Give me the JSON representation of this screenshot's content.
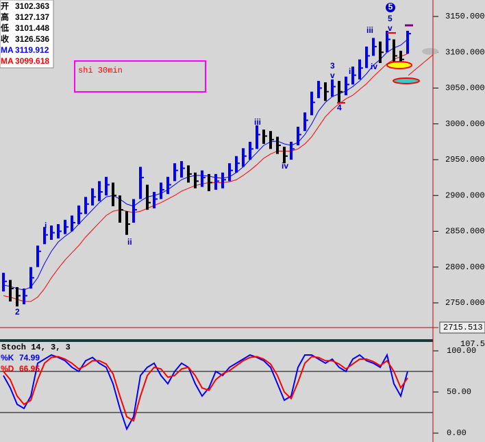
{
  "chart_data": [
    {
      "type": "ohlc",
      "high": [
        2792,
        2782,
        2772,
        2770,
        2800,
        2830,
        2856,
        2858,
        2860,
        2866,
        2872,
        2886,
        2898,
        2910,
        2920,
        2926,
        2918,
        2900,
        2878,
        2895,
        2940,
        2915,
        2905,
        2918,
        2926,
        2945,
        2948,
        2942,
        2932,
        2935,
        2930,
        2930,
        2932,
        2945,
        2955,
        2966,
        2975,
        2998,
        2992,
        2990,
        2982,
        2968,
        2975,
        2996,
        3016,
        3045,
        3060,
        3058,
        3062,
        3060,
        3066,
        3080,
        3090,
        3108,
        3120,
        3115,
        3130,
        3118,
        3102,
        3130
      ],
      "low": [
        2766,
        2752,
        2745,
        2748,
        2770,
        2800,
        2832,
        2838,
        2840,
        2846,
        2850,
        2860,
        2874,
        2886,
        2892,
        2900,
        2885,
        2862,
        2845,
        2862,
        2895,
        2880,
        2882,
        2895,
        2902,
        2920,
        2925,
        2918,
        2910,
        2912,
        2906,
        2908,
        2910,
        2920,
        2932,
        2940,
        2950,
        2965,
        2972,
        2965,
        2958,
        2945,
        2950,
        2970,
        2990,
        3012,
        3036,
        3032,
        3038,
        3030,
        3040,
        3055,
        3062,
        3078,
        3095,
        3085,
        3100,
        3082,
        3078,
        3098
      ],
      "close": [
        2780,
        2770,
        2760,
        2760,
        2785,
        2822,
        2845,
        2848,
        2850,
        2856,
        2862,
        2875,
        2888,
        2898,
        2905,
        2915,
        2900,
        2880,
        2860,
        2880,
        2925,
        2890,
        2895,
        2908,
        2915,
        2935,
        2938,
        2930,
        2920,
        2925,
        2918,
        2920,
        2922,
        2935,
        2945,
        2955,
        2965,
        2985,
        2983,
        2978,
        2970,
        2955,
        2965,
        2985,
        3005,
        3030,
        3050,
        3045,
        3052,
        3045,
        3055,
        3068,
        3078,
        3095,
        3108,
        3100,
        3118,
        3095,
        3090,
        3126
      ],
      "series": [
        {
          "name": "MA",
          "color": "#0000ff",
          "values": [
            2775,
            2773,
            2770,
            2768,
            2772,
            2785,
            2805,
            2822,
            2835,
            2843,
            2850,
            2860,
            2870,
            2880,
            2890,
            2898,
            2900,
            2895,
            2888,
            2885,
            2892,
            2898,
            2900,
            2903,
            2908,
            2915,
            2922,
            2926,
            2928,
            2928,
            2927,
            2925,
            2924,
            2926,
            2932,
            2940,
            2950,
            2960,
            2970,
            2975,
            2976,
            2972,
            2970,
            2974,
            2985,
            3000,
            3018,
            3030,
            3038,
            3042,
            3046,
            3052,
            3060,
            3070,
            3082,
            3090,
            3100,
            3106,
            3110,
            3118
          ]
        },
        {
          "name": "MA",
          "color": "#ff0000",
          "values": [
            2760,
            2758,
            2755,
            2752,
            2752,
            2758,
            2770,
            2785,
            2798,
            2810,
            2820,
            2830,
            2842,
            2852,
            2862,
            2872,
            2878,
            2880,
            2878,
            2876,
            2878,
            2882,
            2886,
            2890,
            2895,
            2900,
            2906,
            2910,
            2914,
            2916,
            2918,
            2918,
            2918,
            2919,
            2922,
            2928,
            2935,
            2943,
            2952,
            2958,
            2962,
            2962,
            2962,
            2965,
            2972,
            2982,
            2996,
            3010,
            3020,
            3028,
            3035,
            3040,
            3048,
            3056,
            3066,
            3075,
            3084,
            3090,
            3094,
            3098
          ]
        }
      ],
      "up_color": "#0000ff",
      "down_color": "#000000",
      "ylim": [
        2713.6,
        3173
      ],
      "yticks": [
        {
          "value": 2750,
          "label": "2750.000"
        },
        {
          "value": 2800,
          "label": "2800.000"
        },
        {
          "value": 2850,
          "label": "2850.000"
        },
        {
          "value": 2900,
          "label": "2900.000"
        },
        {
          "value": 2950,
          "label": "2950.000"
        },
        {
          "value": 3000,
          "label": "3000.000"
        },
        {
          "value": 3050,
          "label": "3050.000"
        },
        {
          "value": 3100,
          "label": "3100.000"
        },
        {
          "value": 3150,
          "label": "3150.000"
        }
      ],
      "cursor_label": "2715.513",
      "annotation": "shi 30min",
      "info_box": [
        {
          "label": "开",
          "value": 3102.363
        },
        {
          "label": "高",
          "value": 3127.137
        },
        {
          "label": "低",
          "value": 3101.448
        },
        {
          "label": "收",
          "value": 3126.536
        },
        {
          "label": "MA",
          "value": 3119.912
        },
        {
          "label": "MA",
          "value": 3099.618
        }
      ],
      "wave_labels": [
        "2",
        "i",
        "ii",
        "iii",
        "iv",
        "3",
        "v",
        "4",
        "i",
        "iii",
        "iv",
        "5",
        "v",
        "5"
      ]
    },
    {
      "type": "line",
      "title": "Stoch 14, 3, 3",
      "series": [
        {
          "name": "%K",
          "color": "#0000ff",
          "values": [
            70,
            55,
            35,
            30,
            45,
            85,
            90,
            95,
            92,
            88,
            80,
            75,
            88,
            92,
            85,
            80,
            60,
            30,
            5,
            20,
            70,
            80,
            85,
            70,
            60,
            75,
            85,
            80,
            60,
            45,
            55,
            75,
            70,
            80,
            85,
            90,
            95,
            92,
            88,
            80,
            60,
            40,
            45,
            80,
            95,
            95,
            90,
            85,
            90,
            80,
            75,
            90,
            95,
            88,
            85,
            80,
            95,
            60,
            45,
            75
          ]
        },
        {
          "name": "%D",
          "color": "#ff0000",
          "values": [
            75,
            65,
            45,
            35,
            40,
            65,
            85,
            92,
            93,
            90,
            85,
            78,
            82,
            88,
            88,
            84,
            72,
            45,
            20,
            15,
            45,
            70,
            80,
            78,
            68,
            70,
            78,
            80,
            70,
            55,
            52,
            65,
            72,
            76,
            82,
            88,
            92,
            93,
            90,
            84,
            70,
            50,
            42,
            62,
            85,
            93,
            92,
            88,
            88,
            84,
            78,
            84,
            90,
            90,
            87,
            82,
            88,
            75,
            55,
            67
          ]
        }
      ],
      "legend_values": [
        74.99,
        66.95
      ],
      "ylim": [
        -10.8,
        110
      ],
      "yticks": [
        {
          "value": 0,
          "label": "0.00"
        },
        {
          "value": 50,
          "label": "50.00"
        },
        {
          "value": 100,
          "label": "100.00"
        }
      ],
      "levels": [
        75,
        25
      ],
      "cursor_label": "107.53"
    }
  ]
}
